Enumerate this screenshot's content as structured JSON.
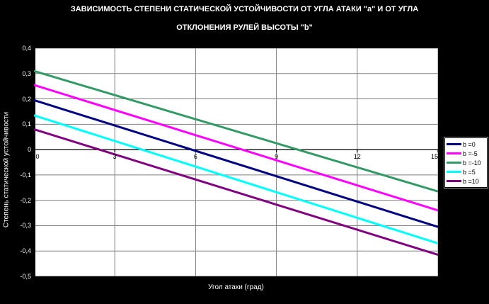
{
  "title_line1": "ЗАВИСИМОСТЬ СТЕПЕНИ СТАТИЧЕСКОЙ УСТОЙЧИВОСТИ ОТ УГЛА АТАКИ \"a\" И ОТ УГЛА",
  "title_line2": "ОТКЛОНЕНИЯ РУЛЕЙ ВЫСОТЫ \"b\"",
  "x_axis_label": "Угол атаки (град)",
  "y_axis_label": "Степень статической устойчивости",
  "colors": {
    "figure_background": "#000000",
    "plot_background": "#FFFFFF",
    "gridline": "#808080",
    "axis_line": "#000000",
    "title_text": "#FFFFFF",
    "tick_text_outside": "#FFFFFF",
    "tick_text_inside": "#000000"
  },
  "chart_data": {
    "type": "line",
    "title": "ЗАВИСИМОСТЬ СТЕПЕНИ СТАТИЧЕСКОЙ УСТОЙЧИВОСТИ ОТ УГЛА АТАКИ \"a\" И ОТ УГЛА ОТКЛОНЕНИЯ РУЛЕЙ ВЫСОТЫ \"b\"",
    "xlabel": "Угол атаки (град)",
    "ylabel": "Степень статической устойчивости",
    "xlim": [
      0,
      15
    ],
    "ylim": [
      -0.5,
      0.4
    ],
    "x_ticks": [
      0,
      3,
      6,
      9,
      12,
      15
    ],
    "x_tick_labels": [
      "0",
      "3",
      "6",
      "9",
      "12",
      "15"
    ],
    "y_tick_values": [
      0.4,
      0.3,
      0.2,
      0.1,
      0,
      -0.1,
      -0.2,
      -0.3,
      -0.4,
      -0.5
    ],
    "y_tick_labels": [
      "0,4",
      "0,3",
      "0,2",
      "0,1",
      "0",
      "-0,1",
      "-0,2",
      "-0,3",
      "-0,4",
      "-0,5"
    ],
    "grid": true,
    "legend_position": "right",
    "series": [
      {
        "name": "b =0",
        "color": "#000080",
        "x": [
          0,
          15
        ],
        "y": [
          0.195,
          -0.305
        ]
      },
      {
        "name": "b =-5",
        "color": "#FF00FF",
        "x": [
          0,
          15
        ],
        "y": [
          0.255,
          -0.24
        ]
      },
      {
        "name": "b =-10",
        "color": "#339966",
        "x": [
          0,
          15
        ],
        "y": [
          0.31,
          -0.165
        ]
      },
      {
        "name": "b =5",
        "color": "#00FFFF",
        "x": [
          0,
          15
        ],
        "y": [
          0.135,
          -0.37
        ]
      },
      {
        "name": "b =10",
        "color": "#800080",
        "x": [
          0,
          15
        ],
        "y": [
          0.08,
          -0.415
        ]
      }
    ]
  }
}
